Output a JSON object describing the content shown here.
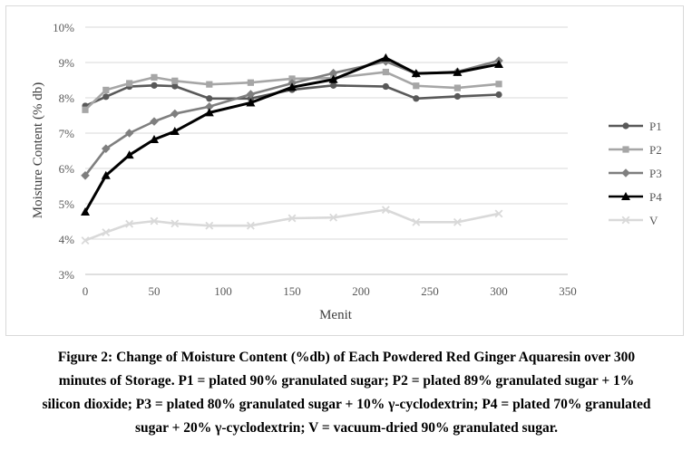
{
  "chart_data": {
    "type": "line",
    "xlabel": "Menit",
    "ylabel": "Moisture Content (% db)",
    "xlim": [
      0,
      350
    ],
    "ylim": [
      3,
      10
    ],
    "x_ticks": [
      "0",
      "50",
      "100",
      "150",
      "200",
      "250",
      "300",
      "350"
    ],
    "y_ticks": [
      "3%",
      "4%",
      "5%",
      "6%",
      "7%",
      "8%",
      "9%",
      "10%"
    ],
    "grid": "horizontal",
    "legend_position": "right",
    "series": [
      {
        "name": "P1",
        "color": "#595959",
        "marker": "circle",
        "x": [
          0,
          15,
          32,
          50,
          65,
          90,
          120,
          150,
          180,
          218,
          240,
          270,
          300
        ],
        "y": [
          7.77,
          8.03,
          8.32,
          8.35,
          8.33,
          7.98,
          7.98,
          8.23,
          8.35,
          8.32,
          7.98,
          8.04,
          8.09
        ]
      },
      {
        "name": "P2",
        "color": "#a6a6a6",
        "marker": "square",
        "x": [
          0,
          15,
          32,
          50,
          65,
          90,
          120,
          150,
          180,
          218,
          240,
          270,
          300
        ],
        "y": [
          7.66,
          8.22,
          8.41,
          8.58,
          8.48,
          8.38,
          8.43,
          8.54,
          8.56,
          8.73,
          8.34,
          8.28,
          8.39
        ]
      },
      {
        "name": "P3",
        "color": "#7f7f7f",
        "marker": "diamond",
        "x": [
          0,
          15,
          32,
          50,
          65,
          90,
          120,
          150,
          180,
          218,
          240,
          270,
          300
        ],
        "y": [
          5.8,
          6.56,
          7.0,
          7.33,
          7.55,
          7.75,
          8.1,
          8.41,
          8.7,
          9.03,
          8.68,
          8.74,
          9.05
        ]
      },
      {
        "name": "P4",
        "color": "#000000",
        "marker": "triangle",
        "x": [
          0,
          15,
          32,
          50,
          65,
          90,
          120,
          150,
          180,
          218,
          240,
          270,
          300
        ],
        "y": [
          4.77,
          5.8,
          6.38,
          6.82,
          7.05,
          7.58,
          7.86,
          8.3,
          8.52,
          9.13,
          8.69,
          8.72,
          8.95
        ]
      },
      {
        "name": "V",
        "color": "#d9d9d9",
        "marker": "x",
        "x": [
          0,
          15,
          32,
          50,
          65,
          90,
          120,
          150,
          180,
          218,
          240,
          270,
          300
        ],
        "y": [
          3.96,
          4.19,
          4.43,
          4.51,
          4.44,
          4.38,
          4.38,
          4.59,
          4.61,
          4.83,
          4.48,
          4.48,
          4.72
        ]
      }
    ]
  },
  "caption": {
    "line1": "Figure 2: Change of Moisture Content (%db) of Each Powdered Red Ginger Aquaresin over 300",
    "line2": "minutes of Storage. P1 = plated 90% granulated sugar; P2 = plated 89% granulated sugar + 1%",
    "line3": "silicon dioxide; P3 = plated 80% granulated sugar + 10% γ-cyclodextrin; P4 = plated 70% granulated",
    "line4": "sugar + 20% γ-cyclodextrin; V = vacuum-dried 90% granulated sugar."
  }
}
